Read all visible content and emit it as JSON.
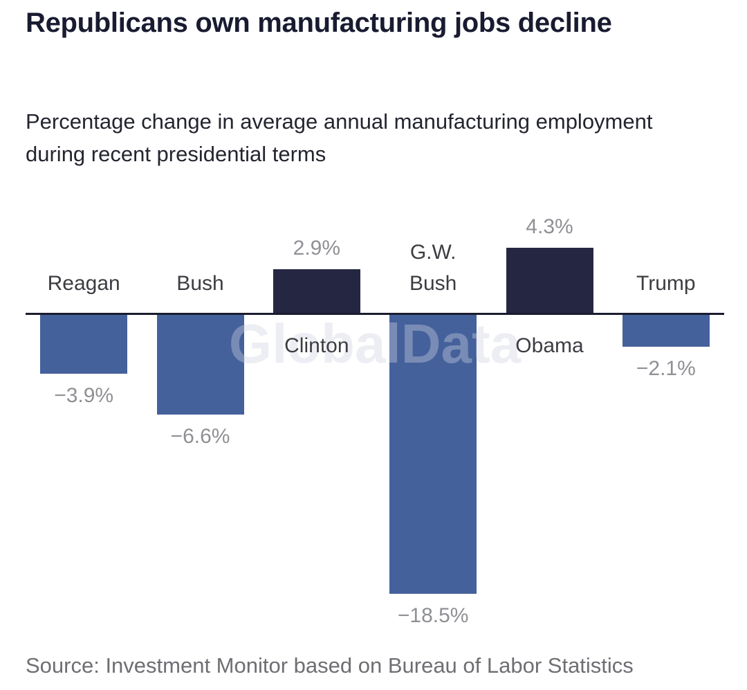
{
  "title": "Republicans own manufacturing jobs decline",
  "subtitle": "Percentage change in average annual manufacturing employment during recent presidential terms",
  "source": "Source: Investment Monitor based on Bureau of Labor Statistics",
  "watermark": "GlobalData",
  "colors": {
    "negative_bar_blue": "#45619c",
    "positive_bar_navy": "#252742",
    "axis_line": "#1a1c30",
    "title_text": "#191b31",
    "subtitle_text": "#23252f",
    "category_label": "#3c3c42",
    "value_label": "#8f9095",
    "source_text": "#6e6e73",
    "watermark_text": "#d0d3e0"
  },
  "chart_data": {
    "type": "bar",
    "title": "Republicans own manufacturing jobs decline",
    "subtitle": "Percentage change in average annual manufacturing employment during recent presidential terms",
    "unit": "%",
    "categories": [
      "Reagan",
      "Bush",
      "Clinton",
      "G.W. Bush",
      "Obama",
      "Trump"
    ],
    "values": [
      -3.9,
      -6.6,
      2.9,
      -18.5,
      4.3,
      -2.1
    ],
    "value_labels": [
      "−3.9%",
      "−6.6%",
      "2.9%",
      "−18.5%",
      "4.3%",
      "−2.1%"
    ],
    "bar_colors": [
      "#45619c",
      "#45619c",
      "#252742",
      "#45619c",
      "#252742",
      "#45619c"
    ],
    "xlabel": "",
    "ylabel": "",
    "ylim": [
      -18.5,
      4.3
    ],
    "baseline": 0,
    "gridlines": false,
    "legend": "none",
    "axis_style": "zero baseline only, no ticks",
    "label_placement": "category labels opposite bar direction relative to zero line; value labels at bar ends"
  }
}
